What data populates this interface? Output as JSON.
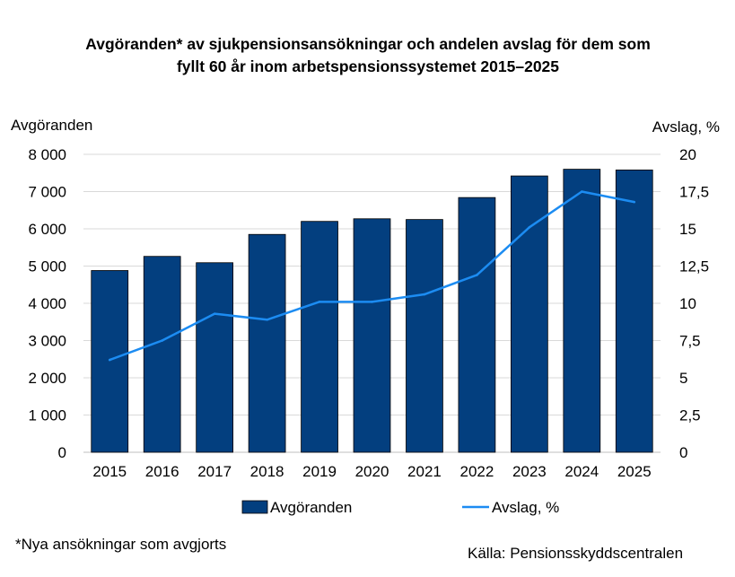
{
  "chart_data": {
    "type": "bar",
    "title_lines": [
      "Avgöranden* av sjukpensionsansökningar och andelen avslag för dem som",
      "fyllt 60 år inom arbetspensionssystemet 2015–2025"
    ],
    "categories": [
      "2015",
      "2016",
      "2017",
      "2018",
      "2019",
      "2020",
      "2021",
      "2022",
      "2023",
      "2024",
      "2025"
    ],
    "series": [
      {
        "name": "Avgöranden",
        "type": "bar",
        "axis": "left",
        "color": "#033F7F",
        "values": [
          4880,
          5260,
          5090,
          5850,
          6200,
          6270,
          6250,
          6840,
          7420,
          7600,
          7580
        ]
      },
      {
        "name": "Avslag, %",
        "type": "line",
        "axis": "right",
        "color": "#1C8CF2",
        "values": [
          6.2,
          7.5,
          9.3,
          8.9,
          10.1,
          10.1,
          10.6,
          11.9,
          15.1,
          17.5,
          16.8
        ]
      }
    ],
    "ylabel_left": "Avgöranden",
    "ylabel_right": "Avslag, %",
    "ylim_left": [
      0,
      8000
    ],
    "ylim_right": [
      0,
      20
    ],
    "yticks_left": [
      "0",
      "1 000",
      "2 000",
      "3 000",
      "4 000",
      "5 000",
      "6 000",
      "7 000",
      "8 000"
    ],
    "yticks_right": [
      "0",
      "2,5",
      "5",
      "7,5",
      "10",
      "12,5",
      "15",
      "17,5",
      "20"
    ],
    "grid": true,
    "legend_position": "bottom"
  },
  "footnote": "*Nya ansökningar som avgjorts",
  "source": "Källa: Pensionsskyddscentralen"
}
